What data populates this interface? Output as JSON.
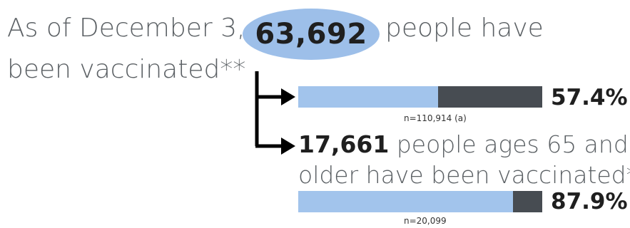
{
  "headline": {
    "prefix": "As of December 3,",
    "count": "63,692",
    "suffix": "people have",
    "line2": "been vaccinated**"
  },
  "all_ages": {
    "percent_label": "57.4%",
    "percent_value": 57.4,
    "n_label": "n=110,914 (a)"
  },
  "seniors": {
    "count": "17,661",
    "text_line1": "people ages 65 and",
    "text_line2": "older have been vaccinated**",
    "percent_label": "87.9%",
    "percent_value": 87.9,
    "n_label": "n=20,099"
  },
  "colors": {
    "bar_fill": "#a2c4ec",
    "bar_remainder": "#474c52",
    "oval": "#9dbfe9"
  },
  "icons": [
    "arrow-right-icon",
    "bracket-connector"
  ]
}
